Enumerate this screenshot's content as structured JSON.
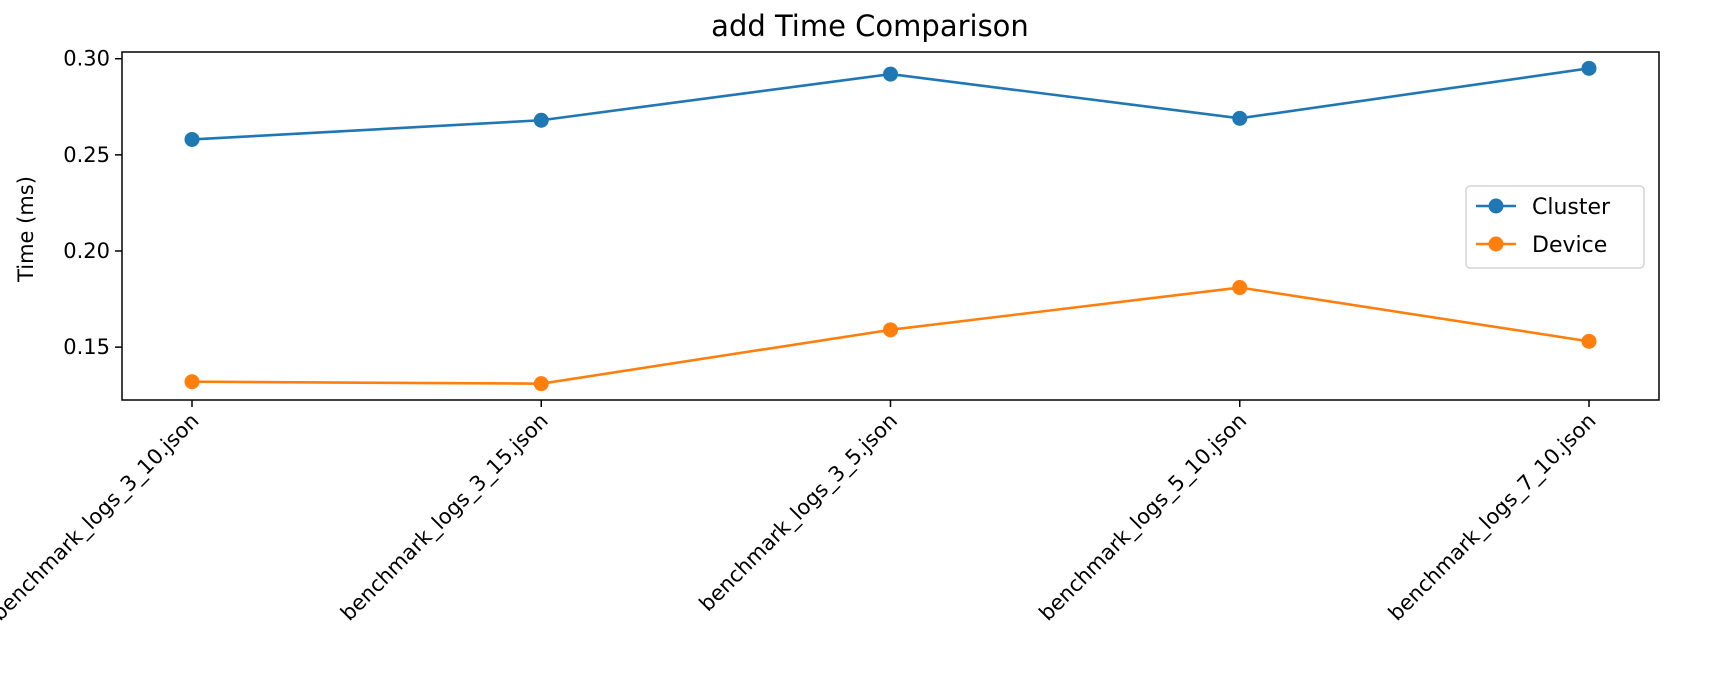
{
  "chart_data": {
    "type": "line",
    "title": "add Time Comparison",
    "xlabel": "",
    "ylabel": "Time (ms)",
    "categories": [
      "benchmark_logs_3_10.json",
      "benchmark_logs_3_15.json",
      "benchmark_logs_3_5.json",
      "benchmark_logs_5_10.json",
      "benchmark_logs_7_10.json"
    ],
    "ylim": [
      0.1225,
      0.3035
    ],
    "yticks": [
      0.15,
      0.2,
      0.25,
      0.3
    ],
    "ytick_labels": [
      "0.15",
      "0.20",
      "0.25",
      "0.30"
    ],
    "grid": false,
    "legend_position": "center-right",
    "series": [
      {
        "name": "Cluster",
        "color": "#1f77b4",
        "marker": "circle",
        "values": [
          0.258,
          0.268,
          0.292,
          0.269,
          0.295
        ]
      },
      {
        "name": "Device",
        "color": "#ff7f0e",
        "marker": "circle",
        "values": [
          0.132,
          0.131,
          0.159,
          0.181,
          0.153
        ]
      }
    ]
  }
}
